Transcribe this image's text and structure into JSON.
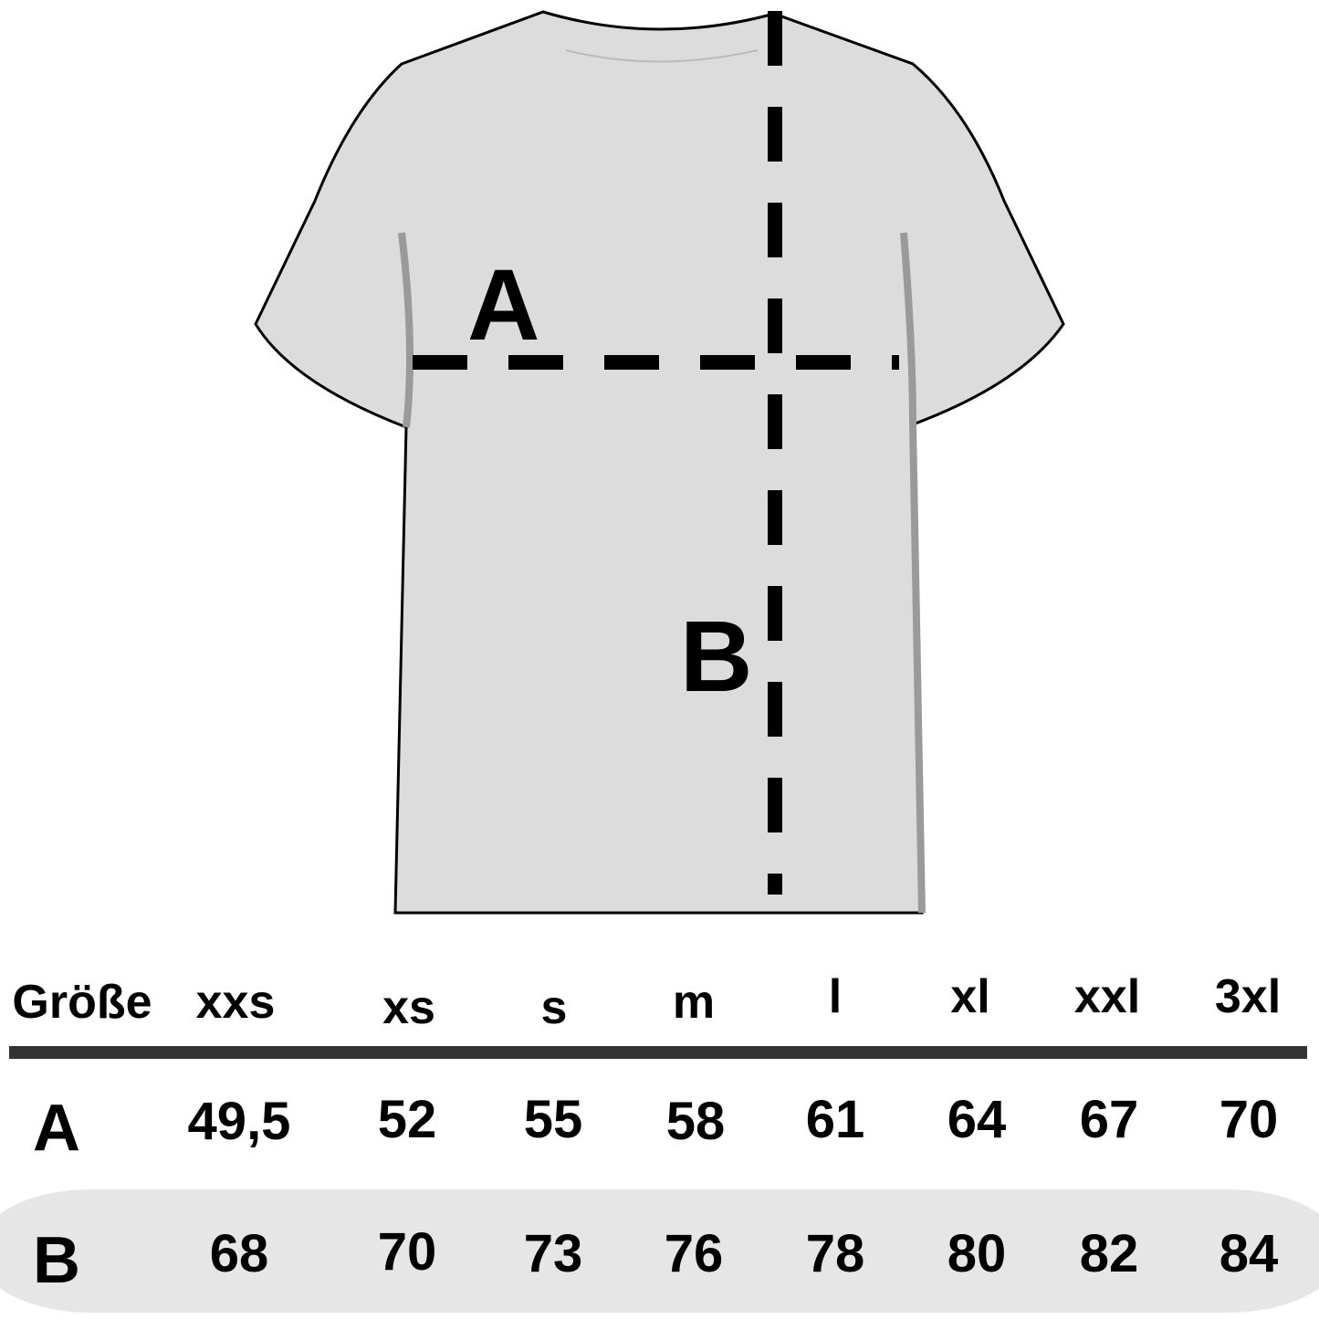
{
  "diagram": {
    "garment": "t-shirt",
    "fill_color": "#dcdcdc",
    "measure_a_label": "A",
    "measure_b_label": "B"
  },
  "table": {
    "header_label": "Größe",
    "sizes": [
      "xxs",
      "xs",
      "s",
      "m",
      "l",
      "xl",
      "xxl",
      "3xl"
    ],
    "rows": [
      {
        "label": "A",
        "values": [
          "49,5",
          "52",
          "55",
          "58",
          "61",
          "64",
          "67",
          "70"
        ]
      },
      {
        "label": "B",
        "values": [
          "68",
          "70",
          "73",
          "76",
          "78",
          "80",
          "82",
          "84"
        ]
      }
    ]
  }
}
